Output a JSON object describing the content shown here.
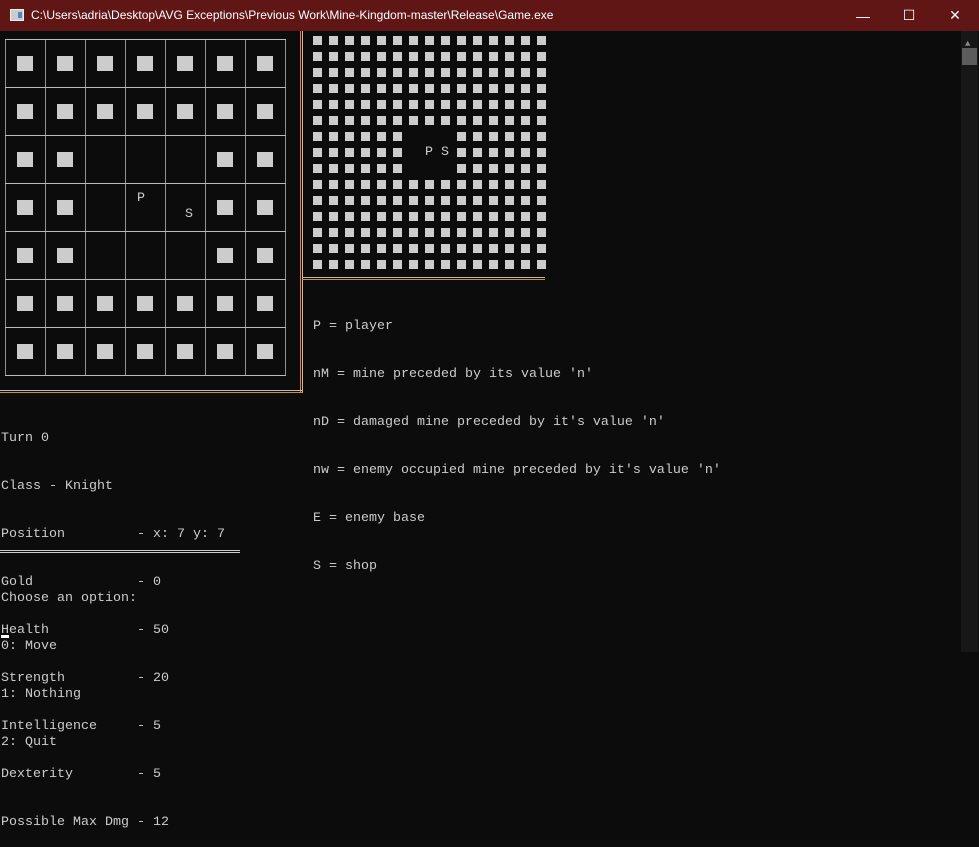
{
  "window": {
    "title": "C:\\Users\\adria\\Desktop\\AVG Exceptions\\Previous Work\\Mine-Kingdom-master\\Release\\Game.exe",
    "controls": {
      "minimize": "—",
      "maximize": "☐",
      "close": "✕"
    }
  },
  "colors": {
    "titlebar": "#611616",
    "grid_line": "#4fa3d9",
    "border_accent": "#d08a3a",
    "text": "#cccccc",
    "background": "#0c0c0c"
  },
  "local_map": {
    "rows": 7,
    "cols": 7,
    "empty": [
      [
        2,
        2
      ],
      [
        2,
        3
      ],
      [
        2,
        4
      ],
      [
        3,
        2
      ],
      [
        3,
        3
      ],
      [
        3,
        4
      ],
      [
        4,
        2
      ],
      [
        4,
        3
      ],
      [
        4,
        4
      ]
    ],
    "player": {
      "label": "P",
      "row": 3,
      "col": 3
    },
    "shop": {
      "label": "S",
      "row": 3,
      "col": 4
    }
  },
  "world_map": {
    "rows": 15,
    "cols": 15,
    "empty": [
      [
        6,
        6
      ],
      [
        6,
        7
      ],
      [
        6,
        8
      ],
      [
        7,
        6
      ],
      [
        7,
        7
      ],
      [
        7,
        8
      ],
      [
        8,
        6
      ],
      [
        8,
        7
      ],
      [
        8,
        8
      ]
    ],
    "player": {
      "label": "P",
      "row": 7,
      "col": 7
    },
    "shop": {
      "label": "S",
      "row": 7,
      "col": 8
    }
  },
  "legend": [
    "P = player",
    "nM = mine preceded by its value 'n'",
    "nD = damaged mine preceded by it's value 'n'",
    "nw = enemy occupied mine preceded by it's value 'n'",
    "E = enemy base",
    "S = shop"
  ],
  "status": {
    "turn": "Turn 0",
    "class": "Class - Knight",
    "lines": [
      "Position         - x: 7 y: 7",
      "Gold             - 0",
      "Health           - 50",
      "Strength         - 20",
      "Intelligence     - 5",
      "Dexterity        - 5",
      "Possible Max Dmg - 12"
    ]
  },
  "menu": {
    "prompt": "Choose an option:",
    "options": [
      "0: Move",
      "1: Nothing",
      "2: Quit"
    ]
  },
  "cursor": "_"
}
